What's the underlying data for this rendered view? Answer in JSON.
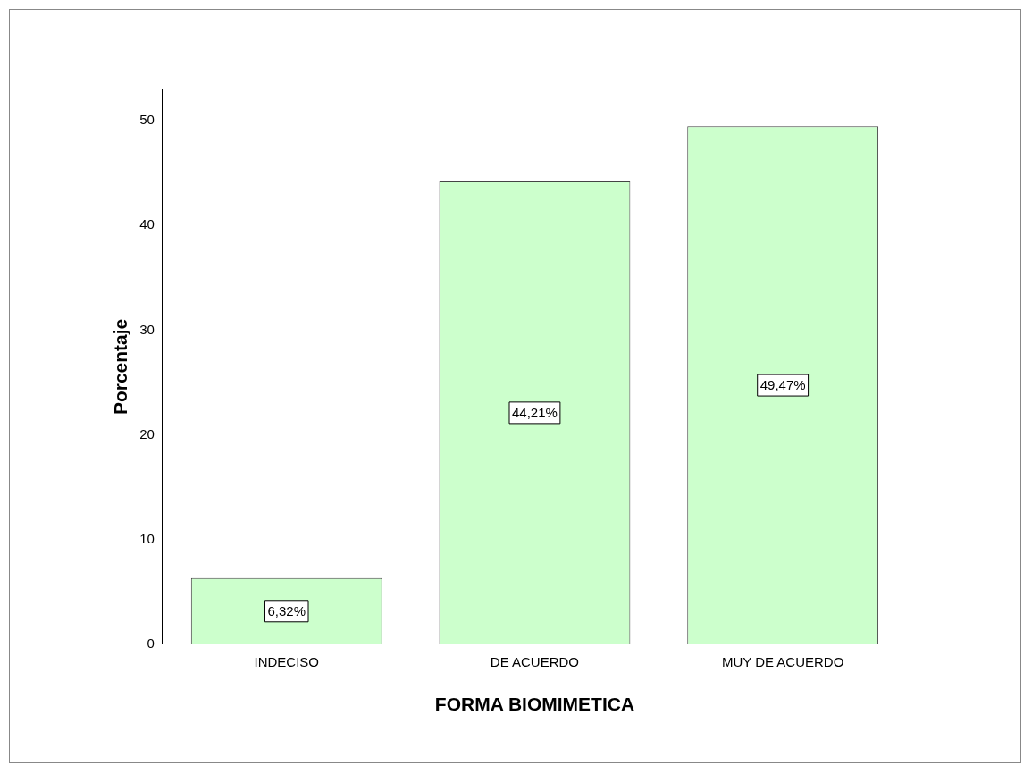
{
  "chart_data": {
    "type": "bar",
    "xlabel": "FORMA BIOMIMETICA",
    "ylabel": "Porcentaje",
    "categories": [
      "INDECISO",
      "DE ACUERDO",
      "MUY DE ACUERDO"
    ],
    "values": [
      6.32,
      44.21,
      49.47
    ],
    "color": "#ccffcc",
    "value_labels": [
      "6,32%",
      "44,21%",
      "49,47%"
    ],
    "ylim": [
      0,
      53
    ],
    "yticks": [
      0,
      10,
      20,
      30,
      40,
      50
    ],
    "grid": false,
    "legend": false
  }
}
